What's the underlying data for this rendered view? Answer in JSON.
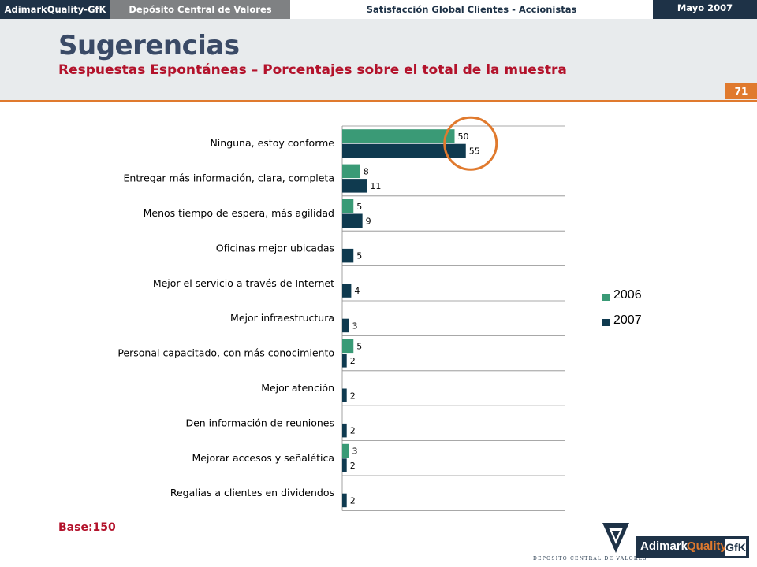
{
  "topbar": {
    "brand": "AdimarkQuality-GfK",
    "client": "Depósito Central de Valores",
    "study": "Satisfacción Global Clientes - Accionistas",
    "date": "Mayo 2007"
  },
  "header": {
    "title": "Sugerencias",
    "subtitle": "Respuestas Espontáneas – Porcentajes sobre el total de la muestra",
    "page_number": "71"
  },
  "footer": {
    "base": "Base:150"
  },
  "logos": {
    "dcv_text": "DEPOSITO CENTRAL DE VALORES",
    "adimark_part1": "Adimark",
    "adimark_part2": "Quality",
    "adimark_part3": "GfK"
  },
  "colors": {
    "series_2006": "#3a9a76",
    "series_2007": "#0f3a4f",
    "accent": "#e07a2e",
    "title": "#3a4a66",
    "subtitle": "#b3122b",
    "highlight_circle": "#e07a2e"
  },
  "chart_data": {
    "type": "bar",
    "orientation": "horizontal",
    "title": "",
    "xlabel": "",
    "ylabel": "",
    "xlim": [
      0,
      100
    ],
    "grid": "horizontal separators between categories",
    "legend_position": "right",
    "categories": [
      "Ninguna, estoy conforme",
      "Entregar más información, clara, completa",
      "Menos tiempo de espera, más agilidad",
      "Oficinas mejor ubicadas",
      "Mejor el servicio a través de Internet",
      "Mejor infraestructura",
      "Personal capacitado, con más conocimiento",
      "Mejor atención",
      "Den información de reuniones",
      "Mejorar accesos y señalética",
      "Regalias a clientes en dividendos"
    ],
    "series": [
      {
        "name": "2006",
        "values": [
          50,
          8,
          5,
          null,
          null,
          null,
          5,
          null,
          null,
          3,
          null
        ]
      },
      {
        "name": "2007",
        "values": [
          55,
          11,
          9,
          5,
          4,
          3,
          2,
          2,
          2,
          2,
          2
        ]
      }
    ],
    "annotation": "circle highlighting first category values"
  }
}
